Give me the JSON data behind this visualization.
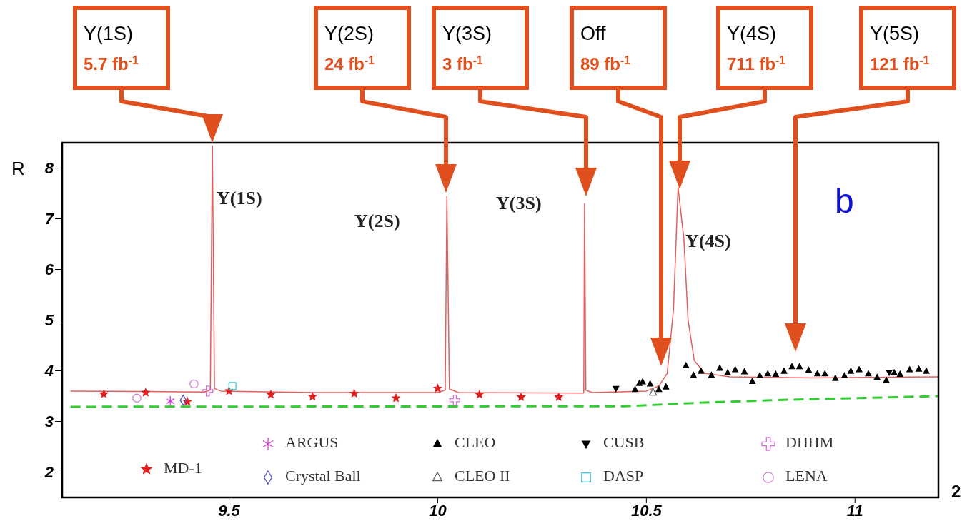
{
  "chart_data": {
    "type": "scatter",
    "ylabel": "R",
    "xlim": [
      9.1,
      11.2
    ],
    "ylim": [
      1.5,
      8.5
    ],
    "xticks": [
      9.5,
      10,
      10.5,
      11
    ],
    "yticks": [
      2,
      3,
      4,
      5,
      6,
      7,
      8
    ],
    "grid": false,
    "legend": "bottom",
    "series": [
      {
        "type": "line",
        "color": "#e06060",
        "marker": "none",
        "x": [
          9.12,
          9.3,
          9.44,
          9.455,
          9.46,
          9.465,
          9.48,
          9.7,
          10.0,
          10.018,
          10.022,
          10.028,
          10.05,
          10.35,
          10.35,
          10.352,
          10.355,
          10.37,
          10.5,
          10.53,
          10.55,
          10.565,
          10.576,
          10.59,
          10.6,
          10.615,
          10.64,
          10.7,
          10.9,
          11.2
        ],
        "values": [
          3.6,
          3.59,
          3.58,
          3.62,
          8.44,
          3.65,
          3.6,
          3.57,
          3.57,
          3.62,
          7.44,
          3.64,
          3.57,
          3.56,
          3.6,
          7.3,
          3.62,
          3.57,
          3.6,
          3.7,
          3.95,
          5.2,
          7.62,
          6.6,
          5.0,
          4.2,
          3.95,
          3.88,
          3.86,
          3.88
        ]
      },
      {
        "type": "line",
        "color": "#33cc33",
        "marker": "none",
        "line_style": "dashed",
        "x": [
          9.12,
          10.45,
          10.6,
          10.8,
          11.2
        ],
        "values": [
          3.29,
          3.3,
          3.36,
          3.42,
          3.5
        ]
      },
      {
        "name": "MD-1",
        "color": "#e02020",
        "marker": "star",
        "x": [
          9.2,
          9.3,
          9.4,
          9.5,
          9.6,
          9.7,
          9.8,
          9.9,
          10.0,
          10.1,
          10.2,
          10.29
        ],
        "values": [
          3.54,
          3.57,
          3.39,
          3.6,
          3.53,
          3.49,
          3.55,
          3.46,
          3.65,
          3.53,
          3.48,
          3.48
        ]
      },
      {
        "name": "ARGUS",
        "color": "#d040d0",
        "marker": "cross",
        "x": [
          9.359
        ],
        "values": [
          3.4
        ]
      },
      {
        "name": "Crystal Ball",
        "color": "#5050c0",
        "marker": "diamond",
        "x": [
          9.39
        ],
        "values": [
          3.42
        ]
      },
      {
        "name": "CLEO",
        "color": "#000000",
        "marker": "triangle",
        "x": [
          10.473,
          10.483,
          10.491,
          10.509,
          10.53,
          10.547,
          10.595,
          10.613,
          10.631,
          10.656,
          10.676,
          10.695,
          10.713,
          10.735,
          10.754,
          10.772,
          10.791,
          10.81,
          10.83,
          10.849,
          10.867,
          10.889,
          10.91,
          10.928,
          10.953,
          10.975,
          10.99,
          11.01,
          11.032,
          11.053,
          11.075,
          11.094,
          11.108,
          11.131,
          11.153,
          11.171
        ],
        "values": [
          3.63,
          3.75,
          3.78,
          3.74,
          3.63,
          3.68,
          4.1,
          3.91,
          3.99,
          3.91,
          4.05,
          3.96,
          4.02,
          3.98,
          3.79,
          3.9,
          3.94,
          3.93,
          3.99,
          4.08,
          4.08,
          4.01,
          3.94,
          3.94,
          3.85,
          3.9,
          3.99,
          4.02,
          3.94,
          3.87,
          3.81,
          3.96,
          3.93,
          4.02,
          4.03,
          3.99
        ]
      },
      {
        "name": "CLEO II",
        "color": "#606060",
        "marker": "triangle-open",
        "x": [
          10.516
        ],
        "values": [
          3.57
        ]
      },
      {
        "name": "CUSB",
        "color": "#000000",
        "marker": "triangle-down",
        "x": [
          10.427,
          11.082
        ],
        "values": [
          3.65,
          3.97
        ]
      },
      {
        "name": "DASP",
        "color": "#40c8d0",
        "marker": "square",
        "x": [
          9.508
        ],
        "values": [
          3.7
        ]
      },
      {
        "name": "DHHM",
        "color": "#d070d0",
        "marker": "plus",
        "x": [
          9.449,
          10.041
        ],
        "values": [
          3.6,
          3.42
        ]
      },
      {
        "name": "LENA",
        "color": "#d080d0",
        "marker": "circle",
        "x": [
          9.279,
          9.416
        ],
        "values": [
          3.46,
          3.74
        ]
      }
    ],
    "annotations": [
      "Y(1S)\n5.7 fb$^{-1}$",
      "Y(2S)\n24 fb$^{-1}$",
      "Y(3S)\n3 fb$^{-1}$",
      "Off\n89 fb$^{-1}$",
      "Y(4S)\n711 fb$^{-1}$",
      "Y(5S)\n121 fb$^{-1}$",
      "Υ(1S)",
      "Υ(2S)",
      "Υ(3S)",
      "Υ(4S)",
      "b",
      "2"
    ]
  }
}
